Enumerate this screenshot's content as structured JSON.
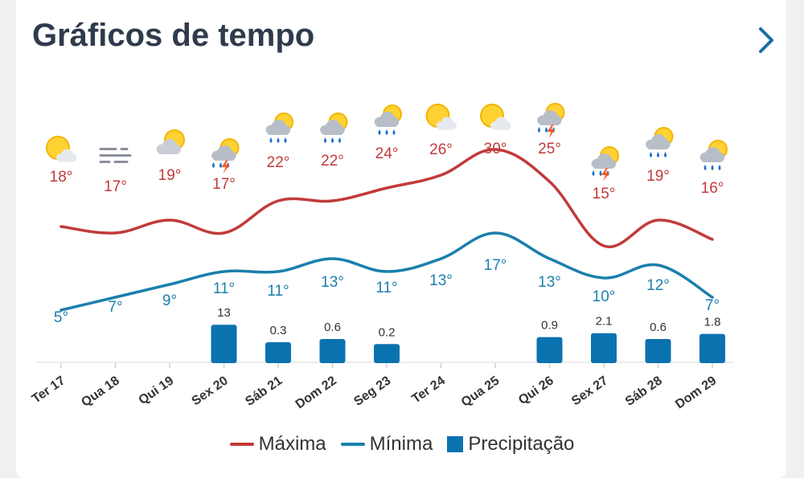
{
  "header": {
    "title": "Gráficos de tempo"
  },
  "colors": {
    "max": "#c23a3a",
    "min": "#1b7fac",
    "precip": "#0b72b0",
    "text": "#333333"
  },
  "legend": {
    "max_label": "Máxima",
    "min_label": "Mínima",
    "precip_label": "Precipitação"
  },
  "chart_data": {
    "type": "line",
    "categories": [
      "Ter 17",
      "Qua 18",
      "Qui 19",
      "Sex 20",
      "Sáb 21",
      "Dom 22",
      "Seg 23",
      "Ter 24",
      "Qua 25",
      "Qui 26",
      "Sex 27",
      "Sáb 28",
      "Dom 29"
    ],
    "series": [
      {
        "name": "Máxima",
        "values": [
          18,
          17,
          19,
          17,
          22,
          22,
          24,
          26,
          30,
          25,
          15,
          19,
          16
        ]
      },
      {
        "name": "Mínima",
        "values": [
          5,
          7,
          9,
          11,
          11,
          13,
          11,
          13,
          17,
          13,
          10,
          12,
          7
        ]
      }
    ],
    "precipitation": {
      "name": "Precipitação",
      "values": [
        null,
        null,
        null,
        13,
        0.3,
        0.6,
        0.2,
        null,
        null,
        0.9,
        2.1,
        0.6,
        1.8
      ],
      "labels": [
        "",
        "",
        "",
        "13",
        "0.3",
        "0.6",
        "0.2",
        "",
        "",
        "0.9",
        "2.1",
        "0.6",
        "1.8"
      ]
    },
    "temperature_labels": {
      "max": [
        "18°",
        "17°",
        "19°",
        "17°",
        "22°",
        "22°",
        "24°",
        "26°",
        "30°",
        "25°",
        "15°",
        "19°",
        "16°"
      ],
      "min": [
        "5°",
        "7°",
        "9°",
        "11°",
        "11°",
        "13°",
        "11°",
        "13°",
        "17°",
        "13°",
        "10°",
        "12°",
        "7°"
      ]
    },
    "icons": [
      "sun-cloud-icon",
      "fog-icon",
      "cloud-sun-icon",
      "thunder-rain-sun-icon",
      "rain-sun-icon",
      "rain-sun-icon",
      "rain-sun-icon",
      "sun-cloud-icon",
      "sun-cloud-icon",
      "thunder-rain-sun-icon",
      "thunder-rain-sun-icon",
      "rain-sun-icon",
      "rain-sun-icon"
    ]
  }
}
